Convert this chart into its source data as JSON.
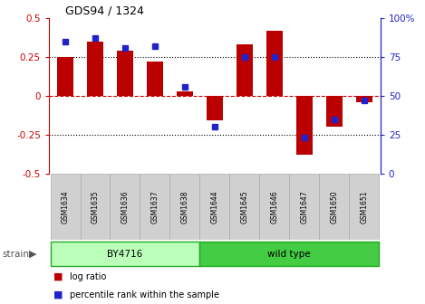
{
  "title": "GDS94 / 1324",
  "samples": [
    "GSM1634",
    "GSM1635",
    "GSM1636",
    "GSM1637",
    "GSM1638",
    "GSM1644",
    "GSM1645",
    "GSM1646",
    "GSM1647",
    "GSM1650",
    "GSM1651"
  ],
  "log_ratio": [
    0.25,
    0.35,
    0.29,
    0.22,
    0.03,
    -0.16,
    0.33,
    0.42,
    -0.38,
    -0.2,
    -0.04
  ],
  "percentile": [
    85,
    87,
    81,
    82,
    56,
    30,
    75,
    75,
    23,
    35,
    47
  ],
  "strain_groups": [
    {
      "label": "BY4716",
      "start": 0,
      "end": 5,
      "color": "#bbffbb"
    },
    {
      "label": "wild type",
      "start": 5,
      "end": 11,
      "color": "#44cc44"
    }
  ],
  "bar_color": "#bb0000",
  "percentile_color": "#2222cc",
  "ylim_left": [
    -0.5,
    0.5
  ],
  "ylim_right": [
    0,
    100
  ],
  "yticks_left": [
    -0.5,
    -0.25,
    0,
    0.25,
    0.5
  ],
  "yticks_right": [
    0,
    25,
    50,
    75,
    100
  ],
  "hlines": [
    0.25,
    -0.25
  ],
  "zero_line_color": "#cc0000",
  "grid_color": "#000000",
  "bg_color": "#ffffff",
  "left_tick_color": "#cc0000",
  "right_tick_color": "#2222cc",
  "bar_width": 0.55,
  "percentile_marker_size": 5,
  "legend_items": [
    {
      "label": "log ratio",
      "color": "#bb0000"
    },
    {
      "label": "percentile rank within the sample",
      "color": "#2222cc"
    }
  ]
}
